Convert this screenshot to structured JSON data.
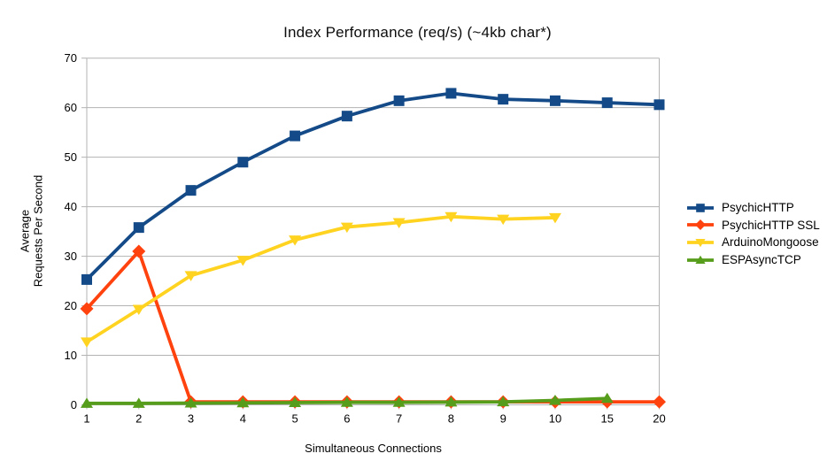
{
  "chart_data": {
    "type": "line",
    "title": "Index Performance (req/s) (~4kb char*)",
    "xlabel": "Simultaneous Connections",
    "ylabel_lines": [
      "Average",
      "Requests Per Second"
    ],
    "categories": [
      "1",
      "2",
      "3",
      "4",
      "5",
      "6",
      "7",
      "8",
      "9",
      "10",
      "15",
      "20"
    ],
    "yticks": [
      0,
      10,
      20,
      30,
      40,
      50,
      60,
      70
    ],
    "ylim": [
      0,
      70
    ],
    "grid": "horizontal",
    "grid_color": "#b3b3b3",
    "legend_position": "right",
    "background_color": "#ffffff",
    "series": [
      {
        "name": "PsychicHTTP",
        "color": "#134A87",
        "marker": "square",
        "values": [
          25.3,
          35.8,
          43.3,
          49.0,
          54.3,
          58.3,
          61.4,
          62.9,
          61.7,
          61.4,
          61.0,
          60.6
        ]
      },
      {
        "name": "PsychicHTTP SSL",
        "color": "#FF420E",
        "marker": "diamond",
        "values": [
          19.4,
          31.0,
          0.6,
          0.6,
          0.6,
          0.6,
          0.6,
          0.6,
          0.6,
          0.6,
          0.6,
          0.6
        ]
      },
      {
        "name": "ArduinoMongoose",
        "color": "#FFD320",
        "marker": "triangle-down",
        "values": [
          12.7,
          19.3,
          26.1,
          29.2,
          33.3,
          35.9,
          36.8,
          38.0,
          37.5,
          37.8
        ]
      },
      {
        "name": "ESPAsyncTCP",
        "color": "#579D1C",
        "marker": "triangle-up",
        "values": [
          0.3,
          0.3,
          0.35,
          0.4,
          0.45,
          0.5,
          0.5,
          0.55,
          0.6,
          0.9,
          1.3
        ]
      }
    ]
  }
}
